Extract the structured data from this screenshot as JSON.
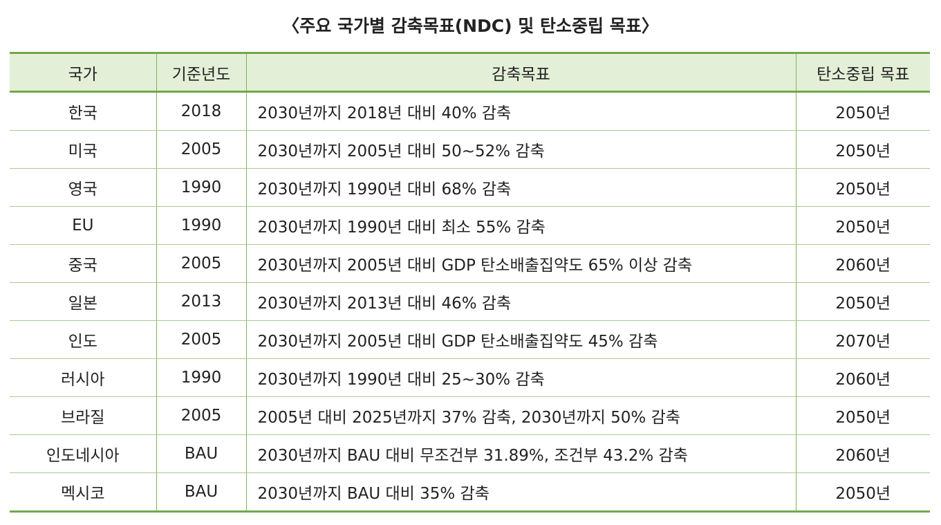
{
  "title": "〈주요 국가별 감축목표(NDC) 및 탄소중립 목표〉",
  "columns": [
    "국가",
    "기준년도",
    "감축목표",
    "탄소중립 목표"
  ],
  "rows": [
    [
      "한국",
      "2018",
      "2030년까지 2018년 대비 40% 감축",
      "2050년"
    ],
    [
      "미국",
      "2005",
      "2030년까지 2005년 대비 50~52% 감축",
      "2050년"
    ],
    [
      "영국",
      "1990",
      "2030년까지 1990년 대비 68% 감축",
      "2050년"
    ],
    [
      "EU",
      "1990",
      "2030년까지 1990년 대비 최소 55% 감축",
      "2050년"
    ],
    [
      "중국",
      "2005",
      "2030년까지 2005년 대비 GDP 탄소배출집약도 65% 이상 감축",
      "2060년"
    ],
    [
      "일본",
      "2013",
      "2030년까지 2013년 대비 46% 감축",
      "2050년"
    ],
    [
      "인도",
      "2005",
      "2030년까지 2005년 대비 GDP 탄소배출집약도 45% 감축",
      "2070년"
    ],
    [
      "러시아",
      "1990",
      "2030년까지 1990년 대비 25~30% 감축",
      "2060년"
    ],
    [
      "브라질",
      "2005",
      "2005년 대비 2025년까지 37% 감축, 2030년까지 50% 감축",
      "2050년"
    ],
    [
      "인도네시아",
      "BAU",
      "2030년까지 BAU 대비 무조건부 31.89%, 조건부 43.2% 감축",
      "2060년"
    ],
    [
      "멕시코",
      "BAU",
      "2030년까지 BAU 대비 35% 감축",
      "2050년"
    ]
  ]
}
